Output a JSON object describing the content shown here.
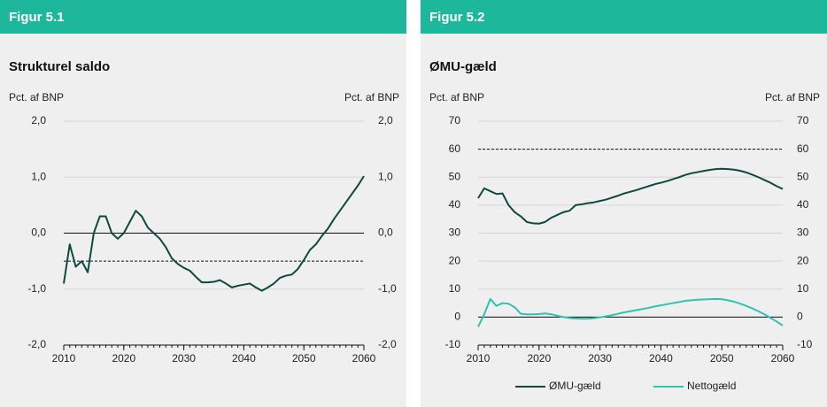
{
  "chart_data": [
    {
      "type": "line",
      "figure_label": "Figur 5.1",
      "title": "Strukturel saldo",
      "ylabel": "Pct. af BNP",
      "y2label": "Pct. af BNP",
      "x": [
        2010,
        2011,
        2012,
        2013,
        2014,
        2015,
        2016,
        2017,
        2018,
        2019,
        2020,
        2021,
        2022,
        2023,
        2024,
        2025,
        2026,
        2027,
        2028,
        2029,
        2030,
        2031,
        2032,
        2033,
        2034,
        2035,
        2036,
        2037,
        2038,
        2039,
        2040,
        2041,
        2042,
        2043,
        2044,
        2045,
        2046,
        2047,
        2048,
        2049,
        2050,
        2051,
        2052,
        2053,
        2054,
        2055,
        2056,
        2057,
        2058,
        2059,
        2060
      ],
      "values": [
        -0.9,
        -0.2,
        -0.6,
        -0.5,
        -0.7,
        0.0,
        0.3,
        0.3,
        0.0,
        -0.1,
        0.0,
        0.2,
        0.4,
        0.3,
        0.1,
        0.0,
        -0.1,
        -0.25,
        -0.45,
        -0.55,
        -0.62,
        -0.67,
        -0.78,
        -0.88,
        -0.88,
        -0.87,
        -0.84,
        -0.9,
        -0.97,
        -0.94,
        -0.92,
        -0.9,
        -0.97,
        -1.03,
        -0.97,
        -0.9,
        -0.8,
        -0.76,
        -0.74,
        -0.64,
        -0.48,
        -0.3,
        -0.2,
        -0.05,
        0.08,
        0.25,
        0.4,
        0.55,
        0.7,
        0.85,
        1.02
      ],
      "color": "#0d4a3e",
      "xlim": [
        2010,
        2060
      ],
      "xticks": [
        2010,
        2020,
        2030,
        2040,
        2050,
        2060
      ],
      "ylim": [
        -2,
        2
      ],
      "yticks": [
        {
          "value": -2,
          "label": "-2,0"
        },
        {
          "value": -1,
          "label": "-1,0"
        },
        {
          "value": 0,
          "label": "0,0"
        },
        {
          "value": 1,
          "label": "1,0"
        },
        {
          "value": 2,
          "label": "2,0"
        }
      ],
      "y2lim": [
        -2,
        2
      ],
      "y2ticks": [
        {
          "value": -2,
          "label": "-2,0"
        },
        {
          "value": -1,
          "label": "-1,0"
        },
        {
          "value": 0,
          "label": "0,0"
        },
        {
          "value": 1,
          "label": "1,0"
        },
        {
          "value": 2,
          "label": "2,0"
        }
      ],
      "zero_line": 0,
      "reference_line": -0.5,
      "grid": true
    },
    {
      "type": "line",
      "figure_label": "Figur 5.2",
      "title": "ØMU-gæld",
      "ylabel": "Pct. af BNP",
      "y2label": "Pct. af BNP",
      "x": [
        2010,
        2011,
        2012,
        2013,
        2014,
        2015,
        2016,
        2017,
        2018,
        2019,
        2020,
        2021,
        2022,
        2023,
        2024,
        2025,
        2026,
        2027,
        2028,
        2029,
        2030,
        2031,
        2032,
        2033,
        2034,
        2035,
        2036,
        2037,
        2038,
        2039,
        2040,
        2041,
        2042,
        2043,
        2044,
        2045,
        2046,
        2047,
        2048,
        2049,
        2050,
        2051,
        2052,
        2053,
        2054,
        2055,
        2056,
        2057,
        2058,
        2059,
        2060
      ],
      "series": [
        {
          "name": "ØMU-gæld",
          "color": "#0d4a3e",
          "values": [
            42.5,
            46,
            45,
            44,
            44.2,
            40,
            37.5,
            36,
            34,
            33.5,
            33.4,
            34,
            35.5,
            36.5,
            37.5,
            38,
            40,
            40.3,
            40.7,
            41,
            41.5,
            42,
            42.7,
            43.4,
            44.2,
            44.8,
            45.4,
            46.1,
            46.8,
            47.5,
            48,
            48.6,
            49.3,
            50,
            50.8,
            51.4,
            51.8,
            52.2,
            52.6,
            52.9,
            53,
            52.9,
            52.7,
            52.3,
            51.7,
            50.9,
            50,
            49,
            48,
            46.8,
            45.8
          ]
        },
        {
          "name": "Nettogæld",
          "color": "#2ec4b0",
          "values": [
            -3.5,
            1,
            6.5,
            4,
            5,
            4.8,
            3.5,
            1.2,
            1,
            1,
            1.1,
            1.3,
            1,
            0.5,
            0,
            -0.3,
            -0.5,
            -0.6,
            -0.6,
            -0.4,
            -0.1,
            0.3,
            0.7,
            1.2,
            1.7,
            2.1,
            2.5,
            2.9,
            3.3,
            3.8,
            4.2,
            4.6,
            5.0,
            5.4,
            5.8,
            6.0,
            6.2,
            6.3,
            6.4,
            6.5,
            6.4,
            6.0,
            5.5,
            4.8,
            4.0,
            3.1,
            2.1,
            1.0,
            -0.3,
            -1.6,
            -3.0
          ]
        }
      ],
      "xlim": [
        2010,
        2060
      ],
      "xticks": [
        2010,
        2020,
        2030,
        2040,
        2050,
        2060
      ],
      "ylim": [
        -10,
        70
      ],
      "yticks": [
        -10,
        0,
        10,
        20,
        30,
        40,
        50,
        60,
        70
      ],
      "y2lim": [
        -10,
        70
      ],
      "y2ticks": [
        -10,
        0,
        10,
        20,
        30,
        40,
        50,
        60,
        70
      ],
      "zero_line": 0,
      "reference_line": 60,
      "grid": true,
      "legend": "bottom"
    }
  ]
}
